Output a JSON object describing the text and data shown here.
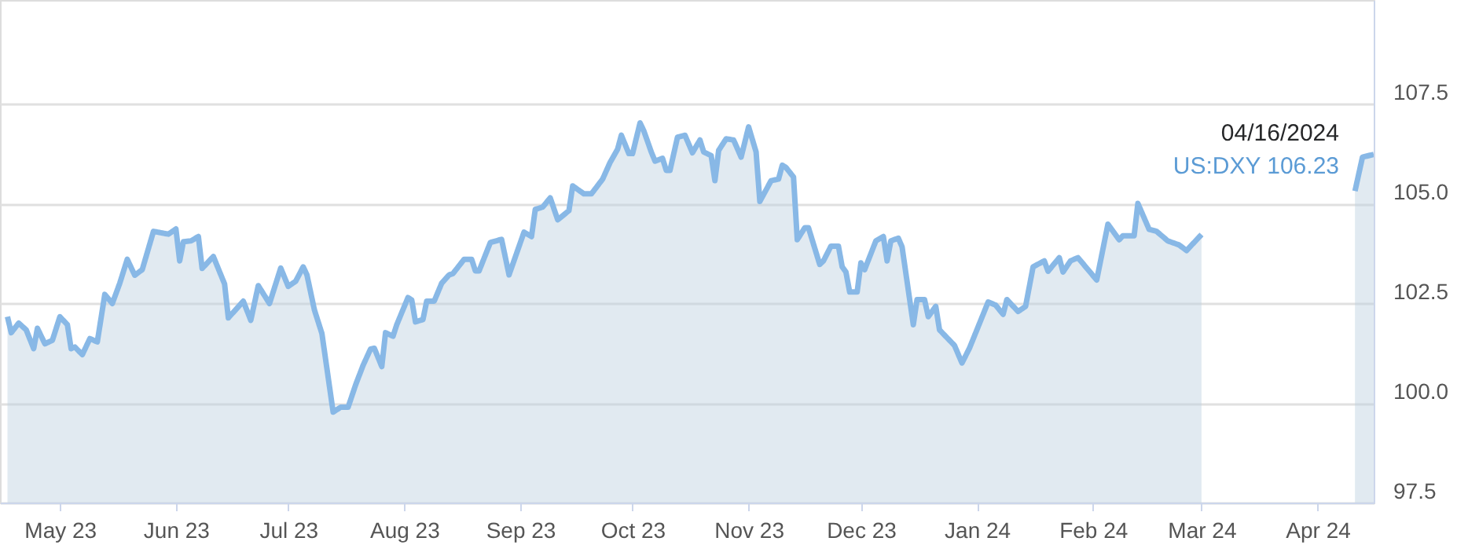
{
  "chart_data": {
    "type": "area",
    "x": [
      "2023-04-17",
      "2023-04-18",
      "2023-04-20",
      "2023-04-22",
      "2023-04-24",
      "2023-04-25",
      "2023-04-27",
      "2023-04-29",
      "2023-05-01",
      "2023-05-03",
      "2023-05-04",
      "2023-05-05",
      "2023-05-07",
      "2023-05-09",
      "2023-05-11",
      "2023-05-13",
      "2023-05-15",
      "2023-05-17",
      "2023-05-19",
      "2023-05-21",
      "2023-05-23",
      "2023-05-26",
      "2023-05-30",
      "2023-06-01",
      "2023-06-02",
      "2023-06-03",
      "2023-06-05",
      "2023-06-07",
      "2023-06-08",
      "2023-06-11",
      "2023-06-14",
      "2023-06-15",
      "2023-06-19",
      "2023-06-21",
      "2023-06-23",
      "2023-06-26",
      "2023-06-29",
      "2023-07-01",
      "2023-07-03",
      "2023-07-05",
      "2023-07-06",
      "2023-07-08",
      "2023-07-10",
      "2023-07-13",
      "2023-07-15",
      "2023-07-17",
      "2023-07-19",
      "2023-07-21",
      "2023-07-23",
      "2023-07-24",
      "2023-07-26",
      "2023-07-27",
      "2023-07-29",
      "2023-07-30",
      "2023-08-02",
      "2023-08-03",
      "2023-08-04",
      "2023-08-06",
      "2023-08-07",
      "2023-08-09",
      "2023-08-11",
      "2023-08-13",
      "2023-08-14",
      "2023-08-17",
      "2023-08-19",
      "2023-08-20",
      "2023-08-21",
      "2023-08-24",
      "2023-08-27",
      "2023-08-29",
      "2023-09-02",
      "2023-09-04",
      "2023-09-05",
      "2023-09-07",
      "2023-09-09",
      "2023-09-11",
      "2023-09-14",
      "2023-09-15",
      "2023-09-18",
      "2023-09-20",
      "2023-09-23",
      "2023-09-25",
      "2023-09-27",
      "2023-09-28",
      "2023-09-30",
      "2023-10-01",
      "2023-10-03",
      "2023-10-04",
      "2023-10-06",
      "2023-10-07",
      "2023-10-09",
      "2023-10-10",
      "2023-10-11",
      "2023-10-13",
      "2023-10-15",
      "2023-10-17",
      "2023-10-19",
      "2023-10-20",
      "2023-10-22",
      "2023-10-23",
      "2023-10-24",
      "2023-10-26",
      "2023-10-28",
      "2023-10-30",
      "2023-11-01",
      "2023-11-03",
      "2023-11-04",
      "2023-11-07",
      "2023-11-09",
      "2023-11-10",
      "2023-11-11",
      "2023-11-13",
      "2023-11-14",
      "2023-11-16",
      "2023-11-17",
      "2023-11-20",
      "2023-11-21",
      "2023-11-23",
      "2023-11-25",
      "2023-11-26",
      "2023-11-27",
      "2023-11-28",
      "2023-11-30",
      "2023-12-01",
      "2023-12-02",
      "2023-12-05",
      "2023-12-07",
      "2023-12-08",
      "2023-12-09",
      "2023-12-11",
      "2023-12-12",
      "2023-12-15",
      "2023-12-16",
      "2023-12-18",
      "2023-12-19",
      "2023-12-21",
      "2023-12-22",
      "2023-12-26",
      "2023-12-28",
      "2023-12-30",
      "2024-01-04",
      "2024-01-06",
      "2024-01-08",
      "2024-01-09",
      "2024-01-12",
      "2024-01-14",
      "2024-01-16",
      "2024-01-19",
      "2024-01-20",
      "2024-01-23",
      "2024-01-24",
      "2024-01-26",
      "2024-01-28",
      "2024-02-02",
      "2024-02-05",
      "2024-02-08",
      "2024-02-09",
      "2024-02-12",
      "2024-02-13",
      "2024-02-16",
      "2024-02-18",
      "2024-02-21",
      "2024-02-24",
      "2024-02-26",
      "2024-03-01",
      "2024-03-20",
      "2024-04-11",
      "2024-04-13",
      "2024-04-16"
    ],
    "series": [
      {
        "color": "#88b8e6",
        "values": [
          102.16,
          101.76,
          102.0,
          101.83,
          101.36,
          101.87,
          101.48,
          101.57,
          102.16,
          101.96,
          101.36,
          101.4,
          101.21,
          101.61,
          101.53,
          102.72,
          102.49,
          103.0,
          103.6,
          103.2,
          103.34,
          104.3,
          104.23,
          104.36,
          103.56,
          104.04,
          104.06,
          104.17,
          103.37,
          103.67,
          102.98,
          102.13,
          102.55,
          102.07,
          102.94,
          102.49,
          103.38,
          102.92,
          103.05,
          103.41,
          103.21,
          102.33,
          101.74,
          99.77,
          99.89,
          99.89,
          100.45,
          100.94,
          101.35,
          101.37,
          100.91,
          101.76,
          101.67,
          101.96,
          102.64,
          102.58,
          102.03,
          102.09,
          102.55,
          102.55,
          103.0,
          103.21,
          103.24,
          103.6,
          103.6,
          103.31,
          103.31,
          104.02,
          104.1,
          103.21,
          104.28,
          104.17,
          104.85,
          104.91,
          105.14,
          104.59,
          104.82,
          105.44,
          105.24,
          105.24,
          105.61,
          106.03,
          106.36,
          106.71,
          106.25,
          106.25,
          107.02,
          106.82,
          106.29,
          106.06,
          106.13,
          105.83,
          105.83,
          106.66,
          106.71,
          106.27,
          106.59,
          106.29,
          106.2,
          105.57,
          106.33,
          106.62,
          106.59,
          106.16,
          106.92,
          106.29,
          105.05,
          105.57,
          105.61,
          105.96,
          105.9,
          105.66,
          104.09,
          104.39,
          104.39,
          103.47,
          103.56,
          103.93,
          103.93,
          103.41,
          103.28,
          102.78,
          102.78,
          103.51,
          103.34,
          104.06,
          104.17,
          103.56,
          104.06,
          104.13,
          103.91,
          101.96,
          102.59,
          102.59,
          102.16,
          102.42,
          101.83,
          101.44,
          101.0,
          101.37,
          102.53,
          102.45,
          102.22,
          102.59,
          102.29,
          102.42,
          103.41,
          103.56,
          103.3,
          103.64,
          103.28,
          103.56,
          103.64,
          103.08,
          104.48,
          104.09,
          104.19,
          104.19,
          105.0,
          104.35,
          104.3,
          104.06,
          103.96,
          103.82,
          104.22,
          null,
          105.31,
          106.16,
          106.23
        ]
      }
    ],
    "xlim": [
      "2023-04-15",
      "2024-04-16"
    ],
    "xticks": [
      {
        "value": "2023-05-01",
        "label": "May 23"
      },
      {
        "value": "2023-06-01",
        "label": "Jun 23"
      },
      {
        "value": "2023-07-01",
        "label": "Jul 23"
      },
      {
        "value": "2023-08-01",
        "label": "Aug 23"
      },
      {
        "value": "2023-09-01",
        "label": "Sep 23"
      },
      {
        "value": "2023-10-01",
        "label": "Oct 23"
      },
      {
        "value": "2023-11-01",
        "label": "Nov 23"
      },
      {
        "value": "2023-12-01",
        "label": "Dec 23"
      },
      {
        "value": "2024-01-01",
        "label": "Jan 24"
      },
      {
        "value": "2024-02-01",
        "label": "Feb 24"
      },
      {
        "value": "2024-03-01",
        "label": "Mar 24"
      },
      {
        "value": "2024-04-01",
        "label": "Apr 24"
      }
    ],
    "ylim": [
      97.5,
      110.1
    ],
    "yticks": [
      {
        "value": 97.5,
        "label": "97.5"
      },
      {
        "value": 100,
        "label": "100.0"
      },
      {
        "value": 102.5,
        "label": "102.5"
      },
      {
        "value": 105,
        "label": "105.0"
      },
      {
        "value": 107.5,
        "label": "107.5"
      }
    ],
    "grid": "y",
    "legend": false,
    "marker": "none",
    "line_style": "solid",
    "annotations": [
      {
        "text": "04/16/2024",
        "x": "2024-04-16",
        "y": 106.23
      },
      {
        "text": "US:DXY  106.23",
        "x": "2024-04-16",
        "y": 106.23
      }
    ]
  }
}
